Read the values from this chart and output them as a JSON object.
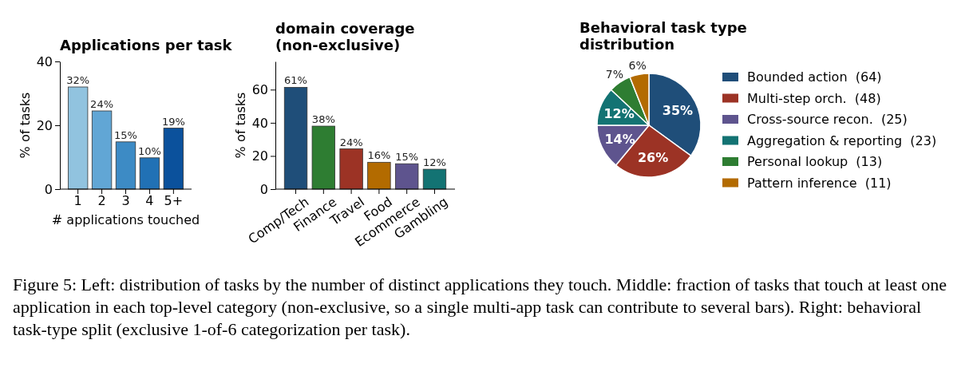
{
  "chart_data": [
    {
      "type": "bar",
      "title": "Applications per task",
      "xlabel": "# applications touched",
      "ylabel": "% of tasks",
      "categories": [
        "1",
        "2",
        "3",
        "4",
        "5+"
      ],
      "values": [
        32,
        24.5,
        14.8,
        9.8,
        19.1
      ],
      "colors": [
        "#91c3df",
        "#61a6d5",
        "#3d8bc5",
        "#2171b5",
        "#0b519c"
      ],
      "value_labels": [
        "32%",
        "24%",
        "15%",
        "10%",
        "19%"
      ],
      "ylim": [
        0,
        40
      ],
      "yticks": [
        0,
        20,
        40
      ],
      "grid": false,
      "annotations": [
        "Figure 5: Left: distribution of tasks by the number of distinct applications they touch. Middle: fraction of tasks that touch at least one application in each top-level category (non-exclusive, so a single multi-app task can contribute to several bars). Right: behavioral task-type split (exclusive 1-of-6 categorization per task)."
      ]
    },
    {
      "type": "bar",
      "title": "domain coverage\n(non-exclusive)",
      "ylabel": "% of tasks",
      "categories": [
        "Comp/Tech",
        "Finance",
        "Travel",
        "Food",
        "Ecommerce",
        "Gambling"
      ],
      "values": [
        61.4,
        38,
        24.3,
        16.2,
        15.3,
        12
      ],
      "colors": [
        "#1f4e79",
        "#2e7d32",
        "#9c3325",
        "#b36b00",
        "#5e548e",
        "#137373"
      ],
      "value_labels": [
        "61%",
        "38%",
        "24%",
        "16%",
        "15%",
        "12%"
      ],
      "ylim": [
        0,
        77
      ],
      "yticks": [
        0,
        20,
        40,
        60
      ],
      "grid": false
    },
    {
      "type": "pie",
      "title": "Behavioral task type\ndistribution",
      "categories": [
        "Bounded action  (64)",
        "Multi-step orch.  (48)",
        "Cross-source recon.  (25)",
        "Aggregation & reporting  (23)",
        "Personal lookup  (13)",
        "Pattern inference  (11)"
      ],
      "values": [
        35,
        26,
        14,
        12,
        7,
        6
      ],
      "colors": [
        "#1f4e79",
        "#9c3325",
        "#5e548e",
        "#137373",
        "#2e7d32",
        "#b36b00"
      ],
      "value_labels": [
        "35%",
        "26%",
        "14%",
        "12%",
        "7%",
        "6%"
      ],
      "legend": "right"
    }
  ]
}
